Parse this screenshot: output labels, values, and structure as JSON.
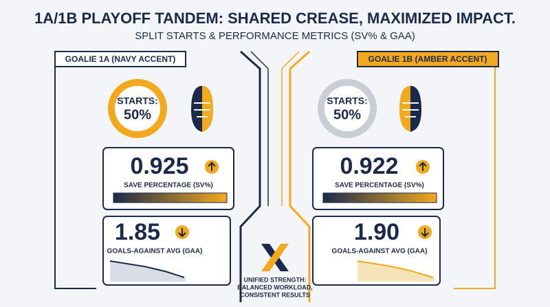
{
  "header": {
    "title": "1A/1B PLAYOFF TANDEM: SHARED CREASE, MAXIMIZED IMPACT.",
    "subtitle": "SPLIT STARTS & PERFORMANCE METRICS (SV% & GAA)"
  },
  "goalies": [
    {
      "label": "GOALIE 1A (NAVY ACCENT)",
      "starts_label": "STARTS:",
      "starts": "50%",
      "save_pct": "0.925",
      "save_pct_label": "SAVE PERCENTAGE (SV%)",
      "gaa": "1.85",
      "gaa_label": "GOALS-AGAINST AVG (GAA)"
    },
    {
      "label": "GOALIE 1B (AMBER ACCENT)",
      "starts_label": "STARTS:",
      "starts": "50%",
      "save_pct": "0.922",
      "save_pct_label": "SAVE PERCENTAGE (SV%)",
      "gaa": "1.90",
      "gaa_label": "GOALS-AGAINST AVG (GAA)"
    }
  ],
  "center": {
    "lines": [
      "UNIFIED STRENGTH:",
      "BALANCED WORKLOAD,",
      "CONSISTENT RESULTS"
    ]
  }
}
